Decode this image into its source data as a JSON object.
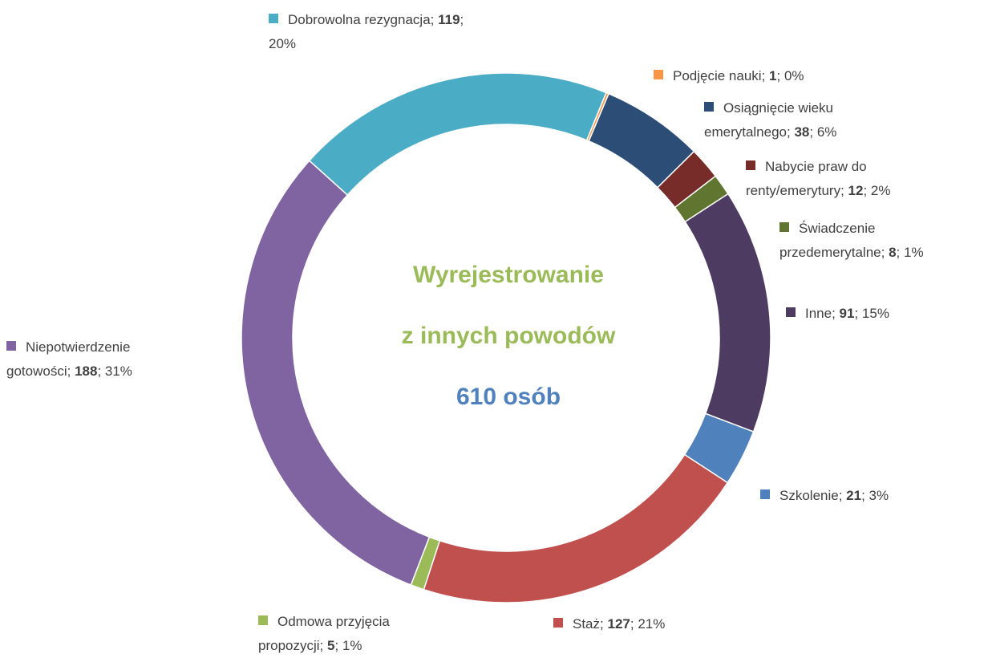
{
  "chart_data": {
    "type": "donut",
    "categories": [
      "Dobrowolna rezygnacja",
      "Podjęcie nauki",
      "Osiągnięcie wieku emerytalnego",
      "Nabycie praw do renty/emerytury",
      "Świadczenie przedemerytalne",
      "Inne",
      "Szkolenie",
      "Staż",
      "Odmowa przyjęcia propozycji",
      "Niepotwierdzenie gotowości"
    ],
    "values": [
      119,
      1,
      38,
      12,
      8,
      91,
      21,
      127,
      5,
      188
    ],
    "value_labels": [
      "20%",
      "0%",
      "6%",
      "2%",
      "1%",
      "15%",
      "3%",
      "21%",
      "1%",
      "31%"
    ],
    "label_separator": "; ",
    "colors": [
      "#4bacc6",
      "#f79646",
      "#2c4d75",
      "#772c2a",
      "#5f7530",
      "#4d3b62",
      "#4f81bd",
      "#c0504d",
      "#9bbb59",
      "#8064a2"
    ],
    "center_text": [
      "Wyrejestrowanie",
      "z innych powodów",
      "610 osób"
    ]
  }
}
